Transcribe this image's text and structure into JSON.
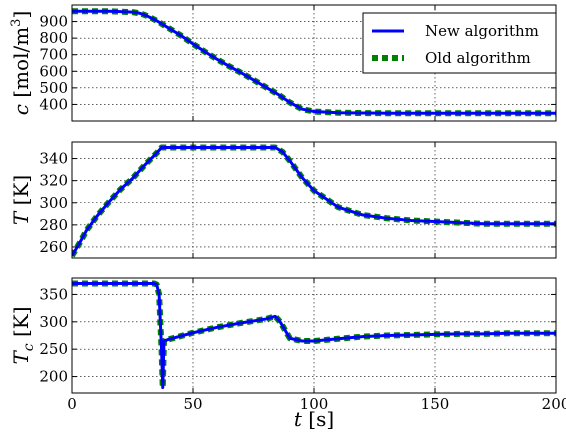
{
  "chart_data": [
    {
      "type": "line",
      "ylabel": "c [mol/m³]",
      "ylabel_var": "c",
      "ylabel_unit": " [mol/m",
      "ylabel_unit_sup": "3",
      "ylabel_unit_close": "]",
      "xlim": [
        0,
        200
      ],
      "ylim": [
        300,
        1000
      ],
      "yticks": [
        400,
        500,
        600,
        700,
        800,
        900
      ],
      "xticks": [
        0,
        50,
        100,
        150,
        200
      ],
      "show_xtick_labels": false,
      "grid": true,
      "legend_position": "top-right",
      "series": [
        {
          "name": "New algorithm",
          "style": "solid",
          "color": "#0000ff",
          "x": [
            0,
            5,
            10,
            15,
            20,
            25,
            28,
            30,
            32,
            35,
            38,
            40,
            45,
            50,
            55,
            60,
            65,
            70,
            75,
            80,
            85,
            88,
            90,
            95,
            100,
            110,
            120,
            130,
            140,
            150,
            160,
            170,
            180,
            190,
            200
          ],
          "y": [
            962,
            962,
            962,
            962,
            960,
            957,
            950,
            940,
            927,
            905,
            878,
            860,
            816,
            765,
            717,
            672,
            630,
            590,
            548,
            505,
            462,
            432,
            412,
            372,
            357,
            350,
            348,
            347,
            347,
            347,
            347,
            347,
            347,
            347,
            347
          ]
        },
        {
          "name": "Old algorithm",
          "style": "dashed",
          "color": "#008000",
          "x": [
            0,
            5,
            10,
            15,
            20,
            25,
            28,
            30,
            32,
            35,
            38,
            40,
            45,
            50,
            55,
            60,
            65,
            70,
            75,
            80,
            85,
            88,
            90,
            95,
            100,
            110,
            120,
            130,
            140,
            150,
            160,
            170,
            180,
            190,
            200
          ],
          "y": [
            962,
            962,
            962,
            962,
            960,
            957,
            950,
            940,
            927,
            905,
            878,
            860,
            816,
            765,
            717,
            672,
            630,
            590,
            548,
            505,
            462,
            432,
            412,
            372,
            357,
            350,
            348,
            347,
            347,
            347,
            347,
            347,
            347,
            347,
            347
          ]
        }
      ]
    },
    {
      "type": "line",
      "ylabel": "T [K]",
      "ylabel_var": "T",
      "ylabel_unit": " [K]",
      "xlim": [
        0,
        200
      ],
      "ylim": [
        250,
        355
      ],
      "yticks": [
        260,
        280,
        300,
        320,
        340
      ],
      "xticks": [
        0,
        50,
        100,
        150,
        200
      ],
      "show_xtick_labels": false,
      "grid": true,
      "series": [
        {
          "name": "New algorithm",
          "style": "solid",
          "color": "#0000ff",
          "x": [
            0,
            3,
            6,
            10,
            15,
            20,
            25,
            30,
            35,
            37,
            40,
            50,
            60,
            70,
            80,
            84,
            87,
            90,
            95,
            100,
            110,
            120,
            130,
            140,
            150,
            160,
            170,
            180,
            190,
            200
          ],
          "y": [
            252,
            263,
            275,
            287,
            300,
            312,
            322,
            334,
            345,
            350,
            350,
            350,
            350,
            350,
            350,
            350,
            346,
            338,
            323,
            311,
            296,
            289,
            286,
            284,
            283,
            282,
            281,
            281,
            281,
            281
          ]
        },
        {
          "name": "Old algorithm",
          "style": "dashed",
          "color": "#008000",
          "x": [
            0,
            3,
            6,
            10,
            15,
            20,
            25,
            30,
            35,
            37,
            40,
            50,
            60,
            70,
            80,
            84,
            87,
            90,
            95,
            100,
            110,
            120,
            130,
            140,
            150,
            160,
            170,
            180,
            190,
            200
          ],
          "y": [
            252,
            263,
            275,
            287,
            300,
            312,
            322,
            334,
            345,
            350,
            350,
            350,
            350,
            350,
            350,
            350,
            346,
            338,
            323,
            311,
            296,
            289,
            286,
            284,
            283,
            282,
            281,
            281,
            281,
            281
          ]
        }
      ]
    },
    {
      "type": "line",
      "ylabel": "Tc [K]",
      "ylabel_var": "T",
      "ylabel_sub": "c",
      "ylabel_unit": " [K]",
      "xlabel": "t [s]",
      "xlabel_var": "t",
      "xlabel_unit": " [s]",
      "xlim": [
        0,
        200
      ],
      "ylim": [
        170,
        380
      ],
      "yticks": [
        200,
        250,
        300,
        350
      ],
      "xticks": [
        0,
        50,
        100,
        150,
        200
      ],
      "show_xtick_labels": true,
      "grid": true,
      "series": [
        {
          "name": "New algorithm",
          "style": "solid",
          "color": "#0000ff",
          "x": [
            0,
            10,
            20,
            30,
            34,
            35,
            36,
            36.5,
            37,
            37.5,
            38,
            40,
            50,
            60,
            70,
            80,
            84,
            86,
            88,
            90,
            95,
            100,
            110,
            120,
            130,
            140,
            150,
            160,
            170,
            180,
            190,
            200
          ],
          "y": [
            370,
            370,
            370,
            370,
            370,
            368,
            350,
            300,
            250,
            180,
            265,
            268,
            280,
            290,
            298,
            305,
            310,
            300,
            285,
            270,
            265,
            265,
            269,
            273,
            275,
            276,
            277,
            278,
            278,
            279,
            279,
            279
          ]
        },
        {
          "name": "Old algorithm",
          "style": "dashed",
          "color": "#008000",
          "x": [
            0,
            10,
            20,
            30,
            34,
            35,
            36,
            36.5,
            37,
            37.5,
            38,
            40,
            50,
            60,
            70,
            80,
            84,
            86,
            88,
            90,
            95,
            100,
            110,
            120,
            130,
            140,
            150,
            160,
            170,
            180,
            190,
            200
          ],
          "y": [
            370,
            370,
            370,
            370,
            370,
            368,
            350,
            300,
            250,
            180,
            265,
            268,
            280,
            290,
            298,
            305,
            310,
            300,
            285,
            270,
            265,
            265,
            269,
            273,
            275,
            276,
            277,
            278,
            278,
            279,
            279,
            279
          ]
        }
      ]
    }
  ],
  "legend": {
    "entries": [
      {
        "label": "New algorithm",
        "color": "#0000ff",
        "style": "solid"
      },
      {
        "label": "Old algorithm",
        "color": "#008000",
        "style": "dashed"
      }
    ]
  }
}
